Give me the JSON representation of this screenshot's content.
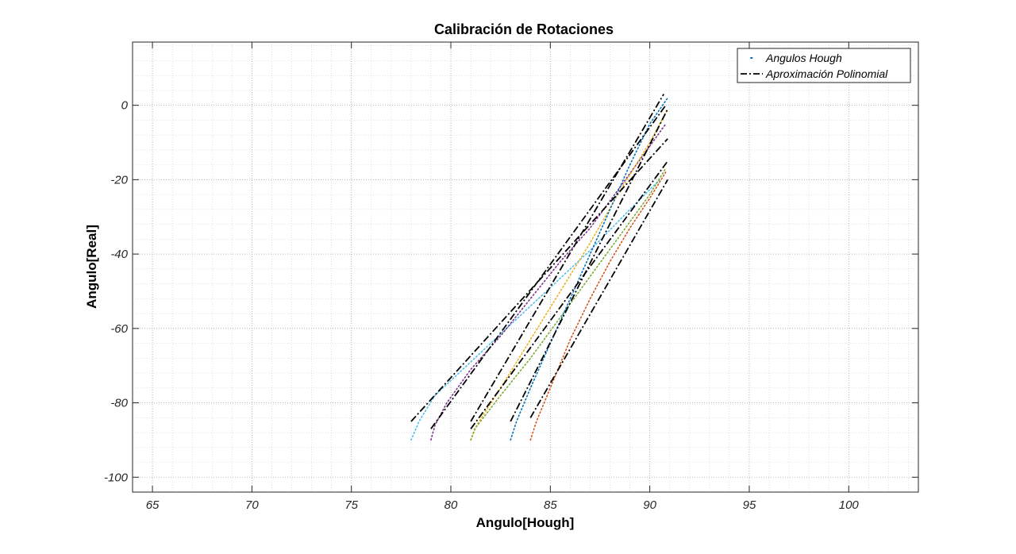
{
  "chart_data": {
    "type": "line",
    "title": "Calibración de Rotaciones",
    "xlabel": "Angulo[Hough]",
    "ylabel": "Angulo[Real]",
    "xlim": [
      64,
      103.5
    ],
    "ylim": [
      -104,
      17
    ],
    "xticks": [
      65,
      70,
      75,
      80,
      85,
      90,
      95,
      100
    ],
    "yticks": [
      0,
      -20,
      -40,
      -60,
      -80,
      -100
    ],
    "grid": "on (major and minor)",
    "legend": {
      "placement": "top-right",
      "entries": [
        {
          "label": "Angulos Hough",
          "style": "dotted",
          "color": "#0072BD"
        },
        {
          "label": "Aproximación Polinomial",
          "style": "dash-dot",
          "color": "#000000"
        }
      ]
    },
    "series": [
      {
        "color": "#4DBEEE",
        "style": "dotted",
        "x": [
          78.0,
          78.4,
          79.2,
          81.0,
          83.0,
          85.0,
          87.0,
          89.0,
          90.5
        ],
        "y": [
          -90,
          -85,
          -78,
          -69,
          -59,
          -49,
          -39,
          -28,
          -20
        ]
      },
      {
        "color": "#7E2F8E",
        "style": "dotted",
        "x": [
          79.0,
          79.2,
          79.8,
          81.0,
          82.5,
          84.0,
          85.5,
          87.0,
          88.5,
          90.0,
          90.8
        ],
        "y": [
          -90,
          -86,
          -80,
          -71,
          -62,
          -52,
          -42,
          -33,
          -22,
          -11,
          -5
        ]
      },
      {
        "color": "#EDB120",
        "style": "dotted",
        "x": [
          81.0,
          81.3,
          82.5,
          84.0,
          85.5,
          87.0,
          88.5,
          90.0,
          90.9
        ],
        "y": [
          -90,
          -86,
          -76,
          -63,
          -50,
          -37,
          -23,
          -10,
          -1
        ]
      },
      {
        "color": "#77AC30",
        "style": "dotted",
        "x": [
          81.0,
          81.2,
          82.5,
          84.0,
          85.5,
          87.0,
          88.5,
          90.0,
          90.8
        ],
        "y": [
          -90,
          -87,
          -78,
          -68,
          -57,
          -46,
          -35,
          -24,
          -17
        ]
      },
      {
        "color": "#0072BD",
        "style": "dotted",
        "x": [
          83.0,
          83.3,
          84.0,
          85.0,
          86.0,
          87.0,
          88.0,
          89.0,
          90.0,
          90.9
        ],
        "y": [
          -90,
          -85,
          -76,
          -64,
          -52,
          -40,
          -28,
          -16,
          -5,
          2
        ]
      },
      {
        "color": "#D95319",
        "style": "dotted",
        "x": [
          84.0,
          84.3,
          85.0,
          86.0,
          87.0,
          88.0,
          89.0,
          90.0,
          90.8
        ],
        "y": [
          -90,
          -85,
          -76,
          -63,
          -52,
          -42,
          -33,
          -25,
          -18
        ]
      },
      {
        "color": "#000000",
        "style": "dash-dot",
        "x": [
          78.0,
          90.9
        ],
        "y": [
          -85,
          -9
        ]
      },
      {
        "color": "#000000",
        "style": "dash-dot",
        "x": [
          79.0,
          90.8
        ],
        "y": [
          -87,
          0
        ]
      },
      {
        "color": "#000000",
        "style": "dash-dot",
        "x": [
          81.0,
          90.7
        ],
        "y": [
          -85,
          3
        ]
      },
      {
        "color": "#000000",
        "style": "dash-dot",
        "x": [
          81.0,
          90.9
        ],
        "y": [
          -87,
          -15
        ]
      },
      {
        "color": "#000000",
        "style": "dash-dot",
        "x": [
          83.0,
          90.9
        ],
        "y": [
          -85,
          -1
        ]
      },
      {
        "color": "#000000",
        "style": "dash-dot",
        "x": [
          84.0,
          90.9
        ],
        "y": [
          -84,
          -20
        ]
      }
    ]
  }
}
